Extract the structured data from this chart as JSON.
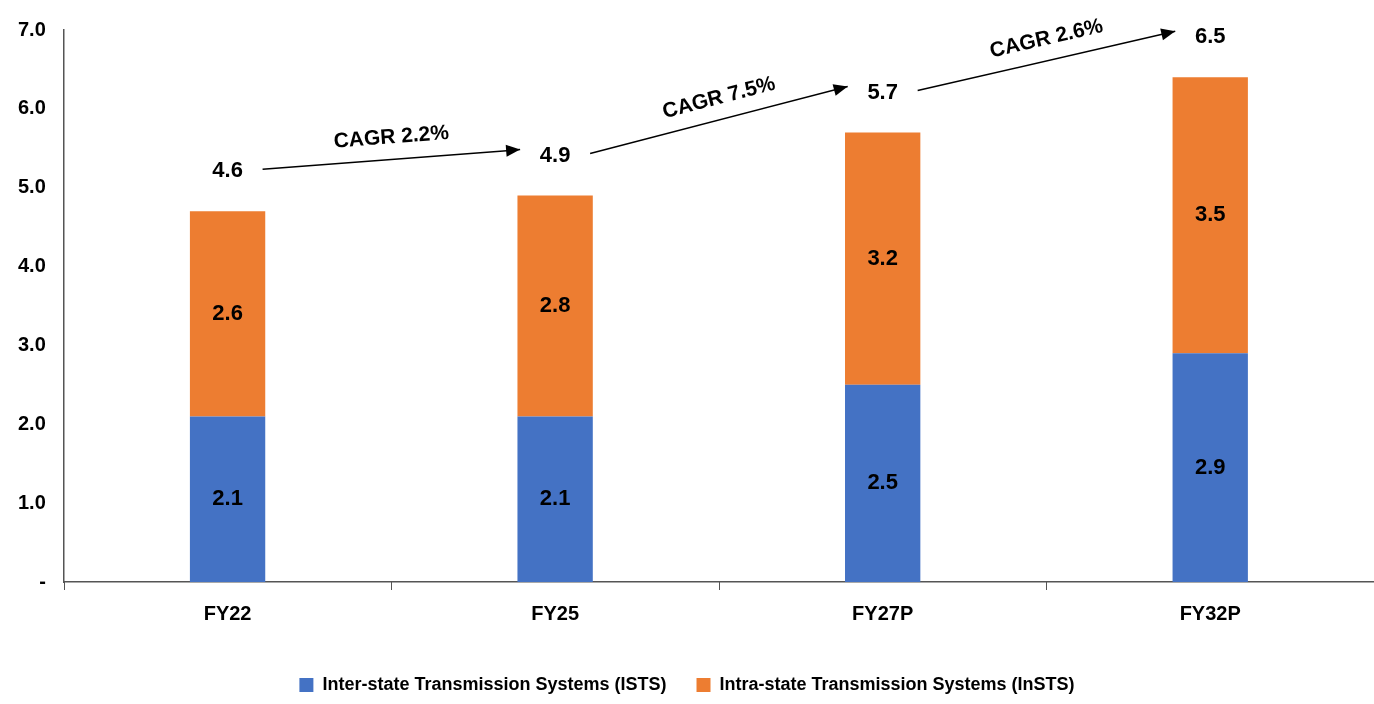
{
  "chart_data": {
    "type": "bar",
    "stacked": true,
    "categories": [
      "FY22",
      "FY25",
      "FY27P",
      "FY32P"
    ],
    "series": [
      {
        "name": "Inter-state Transmission Systems (ISTS)",
        "color": "#4472c4",
        "values": [
          2.1,
          2.1,
          2.5,
          2.9
        ]
      },
      {
        "name": "Intra-state Transmission Systems (InSTS)",
        "color": "#ed7d31",
        "values": [
          2.6,
          2.8,
          3.2,
          3.5
        ]
      }
    ],
    "totals": [
      "4.6",
      "4.9",
      "5.7",
      "6.5"
    ],
    "annotations": [
      "CAGR 2.2%",
      "CAGR 7.5%",
      "CAGR 2.6%"
    ],
    "ylim": [
      0,
      7
    ],
    "yticks": [
      {
        "value": 0,
        "label": "-"
      },
      {
        "value": 1,
        "label": "1.0"
      },
      {
        "value": 2,
        "label": "2.0"
      },
      {
        "value": 3,
        "label": "3.0"
      },
      {
        "value": 4,
        "label": "4.0"
      },
      {
        "value": 5,
        "label": "5.0"
      },
      {
        "value": 6,
        "label": "6.0"
      },
      {
        "value": 7,
        "label": "7.0"
      }
    ],
    "data_labels": true,
    "grid": false,
    "legend": "bottom"
  }
}
